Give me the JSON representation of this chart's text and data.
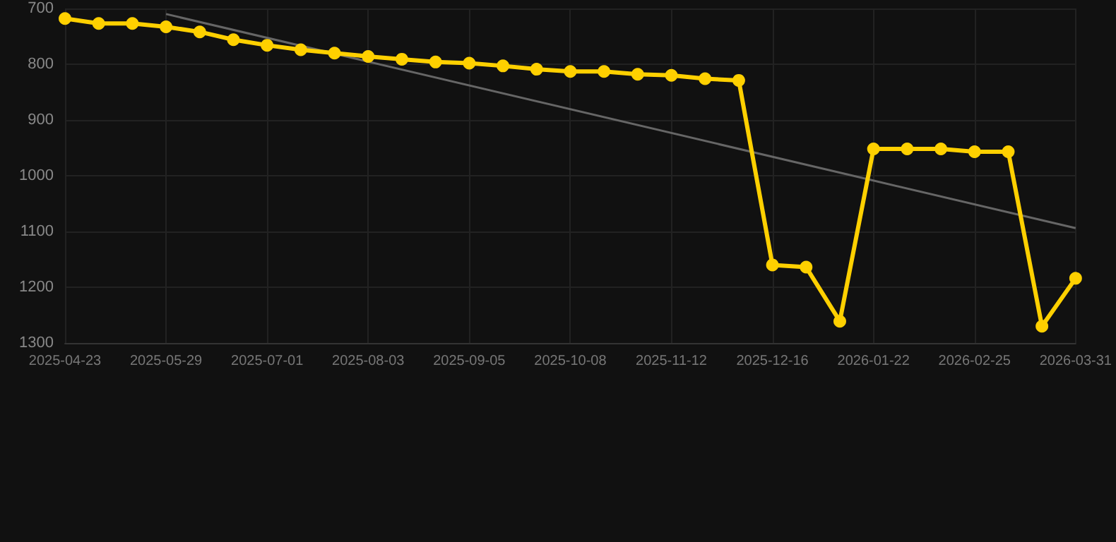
{
  "chart_data": {
    "type": "line",
    "categories": [
      "2025-04-23",
      null,
      null,
      "2025-05-29",
      null,
      null,
      "2025-07-01",
      null,
      null,
      "2025-08-03",
      null,
      null,
      "2025-09-05",
      null,
      null,
      "2025-10-08",
      null,
      null,
      "2025-11-12",
      null,
      null,
      "2025-12-16",
      null,
      null,
      "2026-01-22",
      null,
      null,
      "2026-02-25",
      null,
      null,
      "2026-03-31"
    ],
    "series": [
      {
        "color": "#ffd000",
        "marker": "circle",
        "values": [
          718,
          727,
          727,
          733,
          742,
          756,
          766,
          774,
          780,
          786,
          791,
          796,
          798,
          803,
          809,
          813,
          813,
          818,
          820,
          826,
          829,
          1160,
          1164,
          1261,
          952,
          952,
          952,
          957,
          957,
          1270,
          1184
        ]
      },
      {
        "color": "#666666",
        "marker": "none",
        "values": [
          null,
          null,
          null,
          710,
          null,
          null,
          null,
          null,
          null,
          null,
          null,
          null,
          null,
          null,
          null,
          null,
          null,
          null,
          null,
          null,
          null,
          null,
          null,
          null,
          null,
          null,
          null,
          null,
          null,
          null,
          1094
        ]
      }
    ],
    "ylim": [
      1300,
      700
    ],
    "yticks": [
      700,
      800,
      900,
      1000,
      1100,
      1200,
      1300
    ],
    "grid": true
  }
}
